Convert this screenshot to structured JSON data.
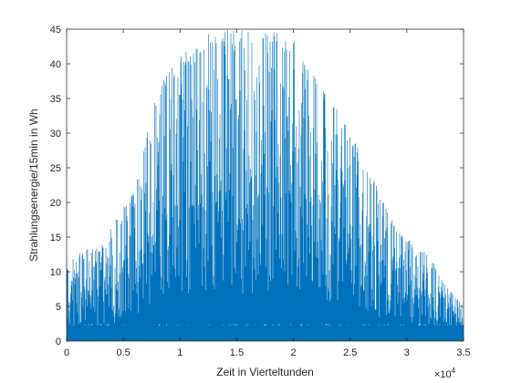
{
  "chart_data": {
    "type": "line",
    "title": "",
    "xlabel": "Zeit in Vierteltunden",
    "ylabel": "Strahlungsenergie/15min in Wh",
    "xlim": [
      0,
      35000
    ],
    "ylim": [
      0,
      45
    ],
    "x_ticks": [
      0,
      5000,
      10000,
      15000,
      20000,
      25000,
      30000,
      35000
    ],
    "x_tick_labels": [
      "0",
      "0.5",
      "1",
      "1.5",
      "2",
      "2.5",
      "3",
      "3.5"
    ],
    "x_exponent_label": "×10",
    "x_exponent_power": "4",
    "y_ticks": [
      0,
      5,
      10,
      15,
      20,
      25,
      30,
      35,
      40,
      45
    ],
    "grid": false,
    "legend": "none",
    "series": [
      {
        "color": "#0072BD",
        "envelope": {
          "x": [
            0,
            1000,
            2000,
            3000,
            4000,
            5000,
            6000,
            7000,
            8000,
            9000,
            10000,
            11000,
            12000,
            13000,
            14000,
            15000,
            16000,
            17000,
            18000,
            19000,
            20000,
            21000,
            22000,
            23000,
            24000,
            25000,
            26000,
            27000,
            28000,
            29000,
            30000,
            31000,
            32000,
            33000,
            34000,
            35000
          ],
          "y": [
            12,
            12.5,
            13.5,
            13.5,
            16.5,
            20,
            21.5,
            30,
            36,
            39,
            41,
            42.5,
            44,
            45,
            45,
            45,
            45,
            45,
            45,
            44,
            43.5,
            41,
            38,
            36,
            33,
            30,
            27,
            24,
            20,
            16.5,
            15,
            13.5,
            12.5,
            9,
            7,
            5
          ]
        },
        "baseline_noise": 2.5
      }
    ]
  }
}
